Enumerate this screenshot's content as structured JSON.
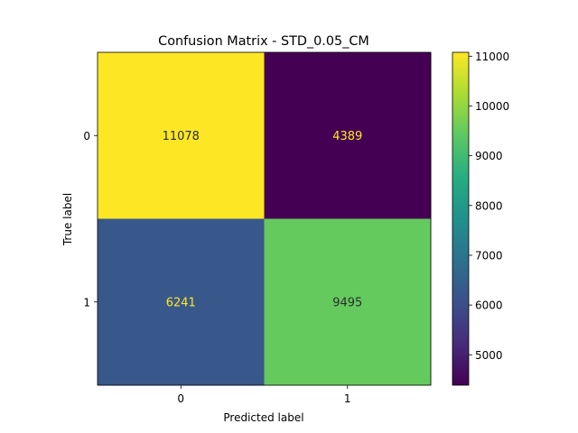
{
  "chart_data": {
    "type": "heatmap",
    "title": "Confusion Matrix - STD_0.05_CM",
    "xlabel": "Predicted label",
    "ylabel": "True label",
    "x_categories": [
      "0",
      "1"
    ],
    "y_categories": [
      "0",
      "1"
    ],
    "values": [
      [
        11078,
        4389
      ],
      [
        6241,
        9495
      ]
    ],
    "colormap": "viridis",
    "colorbar": {
      "range": [
        4389,
        11078
      ],
      "ticks": [
        5000,
        6000,
        7000,
        8000,
        9000,
        10000,
        11000
      ],
      "tick_labels": [
        "5000",
        "6000",
        "7000",
        "8000",
        "9000",
        "10000",
        "11000"
      ]
    },
    "annotation_colors": {
      "on_dark": "#fde725",
      "on_light": "#2d2d2d"
    }
  }
}
